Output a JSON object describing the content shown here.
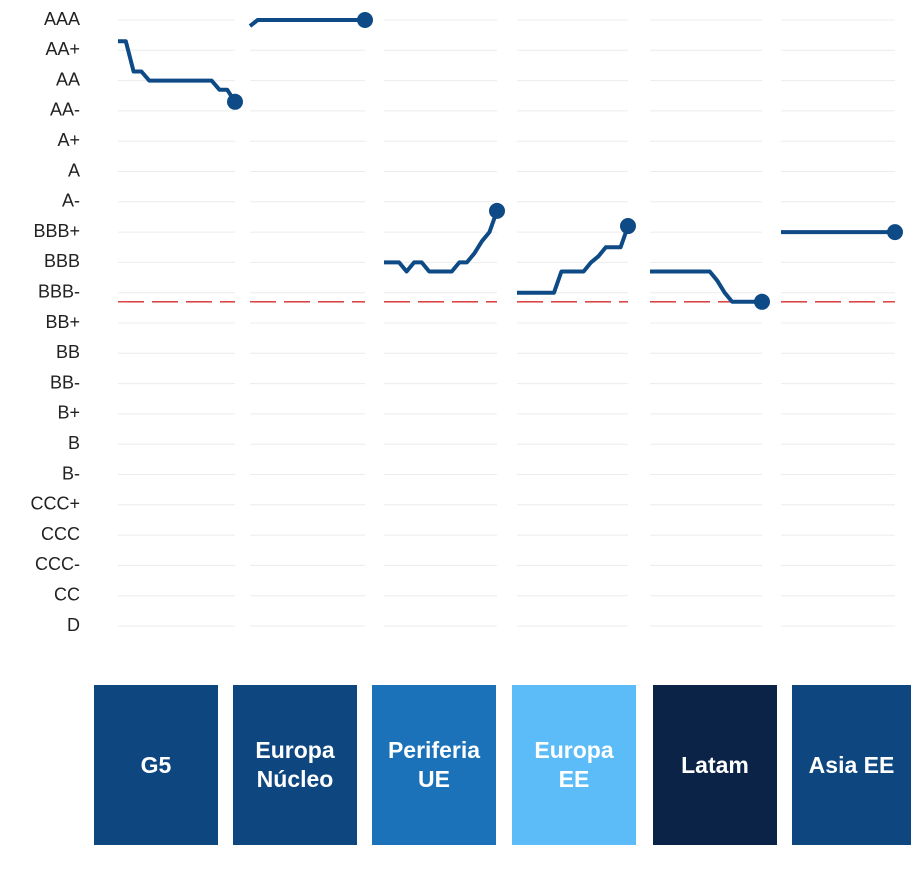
{
  "chart_data": {
    "type": "line",
    "ylim": [
      0.4,
      21.6
    ],
    "yticks": [
      {
        "value": 21,
        "label": "AAA"
      },
      {
        "value": 20,
        "label": "AA+"
      },
      {
        "value": 19,
        "label": "AA"
      },
      {
        "value": 18,
        "label": "AA-"
      },
      {
        "value": 17,
        "label": "A+"
      },
      {
        "value": 16,
        "label": "A"
      },
      {
        "value": 15,
        "label": "A-"
      },
      {
        "value": 14,
        "label": "BBB+"
      },
      {
        "value": 13,
        "label": "BBB"
      },
      {
        "value": 12,
        "label": "BBB-"
      },
      {
        "value": 11,
        "label": "BB+"
      },
      {
        "value": 10,
        "label": "BB"
      },
      {
        "value": 9,
        "label": "BB-"
      },
      {
        "value": 8,
        "label": "B+"
      },
      {
        "value": 7,
        "label": "B"
      },
      {
        "value": 6,
        "label": "B-"
      },
      {
        "value": 5,
        "label": "CCC+"
      },
      {
        "value": 4,
        "label": "CCC"
      },
      {
        "value": 3,
        "label": "CCC-"
      },
      {
        "value": 2,
        "label": "CC"
      },
      {
        "value": 1,
        "label": "D"
      }
    ],
    "grid": true,
    "threshold": 11.7,
    "threshold_color": "#d62728",
    "series": [
      {
        "name": "G5",
        "color": "#0d4a86",
        "panel_color": "#0e4680",
        "values": [
          20.3,
          20.3,
          19.3,
          19.3,
          19.0,
          19.0,
          19.0,
          19.0,
          19.0,
          19.0,
          19.0,
          19.0,
          19.0,
          18.7,
          18.7,
          18.3
        ]
      },
      {
        "name": "Europa Núcleo",
        "color": "#0d4a86",
        "panel_color": "#0e4680",
        "values": [
          20.8,
          21,
          21,
          21,
          21,
          21,
          21,
          21,
          21,
          21,
          21,
          21,
          21,
          21,
          21,
          21
        ]
      },
      {
        "name": "Periferia UE",
        "color": "#0d4a86",
        "panel_color": "#1b72b8",
        "values": [
          13.0,
          13.0,
          13.0,
          12.7,
          13.0,
          13.0,
          12.7,
          12.7,
          12.7,
          12.7,
          13.0,
          13.0,
          13.3,
          13.7,
          14.0,
          14.7
        ]
      },
      {
        "name": "Europa EE",
        "color": "#0d4a86",
        "panel_color": "#5bbcf8",
        "values": [
          12.0,
          12.0,
          12.0,
          12.0,
          12.0,
          12.0,
          12.7,
          12.7,
          12.7,
          12.7,
          13.0,
          13.2,
          13.5,
          13.5,
          13.5,
          14.2
        ]
      },
      {
        "name": "Latam",
        "color": "#0d4a86",
        "panel_color": "#0b2347",
        "values": [
          12.7,
          12.7,
          12.7,
          12.7,
          12.7,
          12.7,
          12.7,
          12.7,
          12.7,
          12.4,
          12.0,
          11.7,
          11.7,
          11.7,
          11.7,
          11.7
        ]
      },
      {
        "name": "Asia EE",
        "color": "#0d4a86",
        "panel_color": "#0e4680",
        "values": [
          14,
          14,
          14,
          14,
          14,
          14,
          14,
          14,
          14,
          14,
          14,
          14,
          14,
          14,
          14,
          14
        ]
      }
    ]
  }
}
